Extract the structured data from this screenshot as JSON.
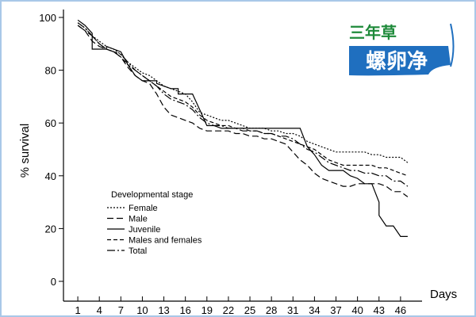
{
  "chart_data": {
    "type": "line",
    "title": "",
    "xlabel": "Days",
    "ylabel": "% survival",
    "x_ticks": [
      1,
      4,
      7,
      10,
      13,
      16,
      19,
      22,
      25,
      28,
      31,
      34,
      37,
      40,
      43,
      46
    ],
    "y_ticks": [
      0,
      20,
      40,
      60,
      80,
      100
    ],
    "xlim": [
      -1,
      49
    ],
    "ylim": [
      0,
      100
    ],
    "legend_title": "Developmental stage",
    "legend_position": "lower-left",
    "series": [
      {
        "name": "Female",
        "dash": "2,2",
        "x": [
          1,
          2,
          3,
          4,
          5,
          6,
          7,
          8,
          9,
          10,
          11,
          12,
          13,
          14,
          15,
          16,
          17,
          18,
          19,
          20,
          21,
          22,
          23,
          24,
          25,
          26,
          27,
          28,
          29,
          30,
          31,
          32,
          33,
          34,
          35,
          36,
          37,
          38,
          39,
          40,
          41,
          42,
          43,
          44,
          45,
          46,
          47
        ],
        "y": [
          98,
          96,
          93,
          91,
          89,
          88,
          86,
          83,
          81,
          79,
          78,
          76,
          74,
          73,
          72,
          71,
          68,
          64,
          63,
          62,
          61,
          61,
          60,
          59,
          58,
          58,
          58,
          57,
          57,
          56,
          56,
          55,
          53,
          52,
          51,
          50,
          49,
          49,
          49,
          49,
          49,
          48,
          48,
          47,
          47,
          47,
          45
        ]
      },
      {
        "name": "Male",
        "dash": "8,4",
        "x": [
          1,
          2,
          3,
          4,
          5,
          6,
          7,
          8,
          9,
          10,
          11,
          12,
          13,
          14,
          15,
          16,
          17,
          18,
          19,
          20,
          21,
          22,
          23,
          24,
          25,
          26,
          27,
          28,
          29,
          30,
          31,
          32,
          33,
          34,
          35,
          36,
          37,
          38,
          39,
          40,
          41,
          42,
          43,
          44,
          45,
          46,
          47
        ],
        "y": [
          97,
          95,
          91,
          89,
          88,
          87,
          85,
          81,
          78,
          76,
          75,
          71,
          66,
          63,
          62,
          61,
          60,
          58,
          57,
          57,
          57,
          57,
          56,
          56,
          55,
          55,
          54,
          54,
          53,
          52,
          49,
          46,
          44,
          41,
          39,
          38,
          37,
          36,
          36,
          37,
          37,
          37,
          37,
          36,
          34,
          34,
          32
        ]
      },
      {
        "name": "Juvenile",
        "dash": "",
        "x": [
          1,
          2,
          3,
          3,
          5,
          5,
          7,
          8,
          9,
          10,
          11,
          12,
          12,
          14,
          15,
          15,
          17,
          18,
          19,
          20,
          21,
          22,
          23,
          24,
          25,
          26,
          27,
          28,
          29,
          30,
          31,
          32,
          33,
          34,
          35,
          36,
          37,
          38,
          39,
          40,
          41,
          42,
          43,
          43,
          44,
          45,
          46,
          47
        ],
        "y": [
          99,
          97,
          94,
          88,
          88,
          89,
          87,
          82,
          78,
          76,
          76,
          76,
          75,
          73,
          73,
          71,
          71,
          65,
          59,
          59,
          58,
          58,
          58,
          58,
          58,
          58,
          58,
          58,
          58,
          58,
          58,
          58,
          51,
          48,
          44,
          42,
          42,
          42,
          40,
          39,
          37,
          37,
          30,
          25,
          21,
          21,
          17,
          17
        ]
      },
      {
        "name": "Males and females",
        "dash": "5,3",
        "x": [
          1,
          2,
          3,
          4,
          5,
          6,
          7,
          8,
          9,
          10,
          11,
          12,
          13,
          14,
          15,
          16,
          17,
          18,
          19,
          20,
          21,
          22,
          23,
          24,
          25,
          26,
          27,
          28,
          29,
          30,
          31,
          32,
          33,
          34,
          35,
          36,
          37,
          38,
          39,
          40,
          41,
          42,
          43,
          44,
          45,
          46,
          47
        ],
        "y": [
          97,
          95,
          93,
          90,
          88,
          87,
          85,
          82,
          80,
          78,
          76,
          74,
          72,
          70,
          69,
          68,
          66,
          63,
          61,
          60,
          59,
          59,
          58,
          58,
          57,
          57,
          56,
          56,
          55,
          54,
          53,
          52,
          51,
          50,
          48,
          46,
          45,
          44,
          44,
          44,
          44,
          44,
          43,
          43,
          42,
          41,
          40
        ]
      },
      {
        "name": "Total",
        "dash": "10,3,2,3",
        "x": [
          1,
          2,
          3,
          4,
          5,
          6,
          7,
          8,
          9,
          10,
          11,
          12,
          13,
          14,
          15,
          16,
          17,
          18,
          19,
          20,
          21,
          22,
          23,
          24,
          25,
          26,
          27,
          28,
          29,
          30,
          31,
          32,
          33,
          34,
          35,
          36,
          37,
          38,
          39,
          40,
          41,
          42,
          43,
          44,
          45,
          46,
          47
        ],
        "y": [
          98,
          96,
          93,
          90,
          88,
          87,
          86,
          83,
          80,
          78,
          76,
          74,
          71,
          69,
          68,
          67,
          65,
          62,
          60,
          59,
          59,
          58,
          58,
          57,
          57,
          57,
          56,
          56,
          55,
          55,
          54,
          52,
          50,
          49,
          47,
          45,
          44,
          43,
          42,
          42,
          41,
          41,
          40,
          40,
          38,
          38,
          36
        ]
      }
    ]
  },
  "watermark": {
    "top_text": "三年草",
    "main_text": "螺卵净",
    "top_color": "#1e8a3a",
    "badge_color": "#1f6fbf"
  }
}
